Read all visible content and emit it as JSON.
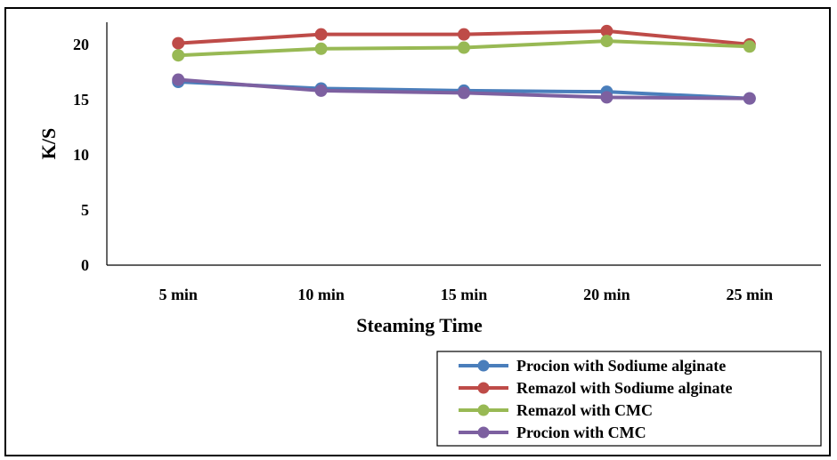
{
  "chart_data": {
    "type": "line",
    "title": "",
    "xlabel": "Steaming Time",
    "ylabel": "K/S",
    "categories": [
      "5 min",
      "10 min",
      "15 min",
      "20 min",
      "25 min"
    ],
    "ylim": [
      0,
      22
    ],
    "yticks": [
      0,
      5,
      10,
      15,
      20
    ],
    "grid": false,
    "legend_position": "bottom-right",
    "series": [
      {
        "name": "Procion with Sodiume alginate",
        "color": "#4a7ebb",
        "values": [
          16.6,
          16.0,
          15.8,
          15.7,
          15.1
        ]
      },
      {
        "name": "Remazol with Sodiume alginate",
        "color": "#be4b48",
        "values": [
          20.1,
          20.9,
          20.9,
          21.2,
          20.0
        ]
      },
      {
        "name": "Remazol with CMC",
        "color": "#98b954",
        "values": [
          19.0,
          19.6,
          19.7,
          20.3,
          19.8
        ]
      },
      {
        "name": "Procion with CMC",
        "color": "#7d60a0",
        "values": [
          16.8,
          15.8,
          15.6,
          15.2,
          15.1
        ]
      }
    ]
  }
}
